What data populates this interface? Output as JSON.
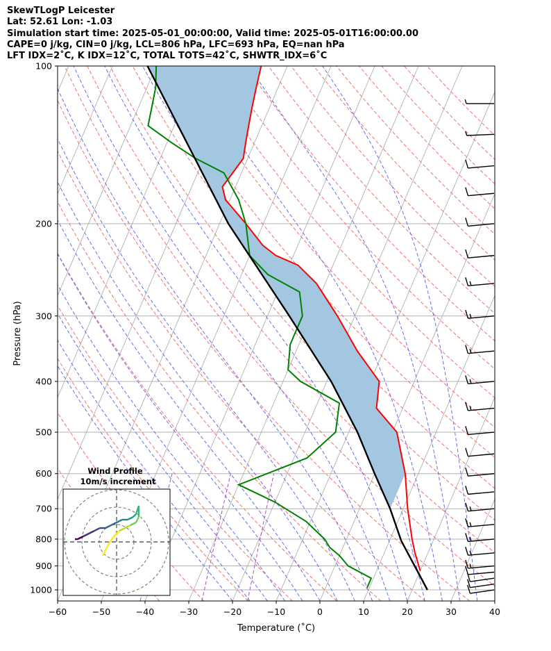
{
  "header": {
    "line1": "SkewTLogP Leicester",
    "line2": "Lat: 52.61   Lon: -1.03",
    "line3": "Simulation start time: 2025-05-01_00:00:00, Valid time: 2025-05-01T16:00:00.00",
    "line4": "CAPE=0 j/kg, CIN=0 j/kg, LCL=806 hPa, LFC=693 hPa, EQ=nan hPa",
    "line5": "LFT IDX=2˚C, K IDX=12˚C, TOTAL TOTS=42˚C, SHWTR_IDX=6˚C"
  },
  "chart_data": {
    "type": "line",
    "title": "SkewTLogP Leicester",
    "xlabel": "Temperature (˚C)",
    "ylabel": "Pressure (hPa)",
    "xlim": [
      -60,
      40
    ],
    "ylim": [
      1050,
      100
    ],
    "yscale": "log",
    "x_ticks": [
      "−60",
      "−50",
      "−40",
      "−30",
      "−20",
      "−10",
      "0",
      "10",
      "20",
      "30",
      "40"
    ],
    "y_ticks": [
      "1000",
      "900",
      "800",
      "700",
      "600",
      "500",
      "400",
      "300",
      "200",
      "100"
    ],
    "grid": true,
    "series": [
      {
        "name": "Temperature",
        "color": "#ff0000",
        "points": [
          [
            20,
            920
          ],
          [
            17,
            850
          ],
          [
            15,
            800
          ],
          [
            11,
            700
          ],
          [
            7,
            600
          ],
          [
            1,
            500
          ],
          [
            -6,
            450
          ],
          [
            -8,
            400
          ],
          [
            -16,
            350
          ],
          [
            -24,
            300
          ],
          [
            -32,
            260
          ],
          [
            -38,
            240
          ],
          [
            -44,
            230
          ],
          [
            -48,
            220
          ],
          [
            -54,
            200
          ],
          [
            -61,
            180
          ],
          [
            -63,
            170
          ],
          [
            -62,
            160
          ],
          [
            -61,
            150
          ],
          [
            -62,
            140
          ],
          [
            -63,
            130
          ],
          [
            -64,
            120
          ],
          [
            -65,
            110
          ],
          [
            -66,
            100
          ]
        ]
      },
      {
        "name": "Dew point",
        "color": "#008000",
        "points": [
          [
            9.5,
            990
          ],
          [
            9.5,
            970
          ],
          [
            9.5,
            950
          ],
          [
            3,
            900
          ],
          [
            0,
            860
          ],
          [
            -3,
            830
          ],
          [
            -5,
            800
          ],
          [
            -11,
            740
          ],
          [
            -20,
            680
          ],
          [
            -30,
            630
          ],
          [
            -17,
            560
          ],
          [
            -13,
            500
          ],
          [
            -15,
            440
          ],
          [
            -26,
            400
          ],
          [
            -30,
            380
          ],
          [
            -32,
            340
          ],
          [
            -32,
            300
          ],
          [
            -35,
            270
          ],
          [
            -44,
            250
          ],
          [
            -50,
            230
          ],
          [
            -54,
            200
          ],
          [
            -58,
            180
          ],
          [
            -64,
            160
          ],
          [
            -72,
            150
          ],
          [
            -79,
            140
          ],
          [
            -86,
            130
          ],
          [
            -88,
            110
          ],
          [
            -90,
            100
          ]
        ]
      },
      {
        "name": "Parcel profile",
        "color": "#000000",
        "points": [
          [
            23.5,
            1000
          ],
          [
            12.7,
            806
          ],
          [
            7,
            700
          ],
          [
            0,
            600
          ],
          [
            -8,
            500
          ],
          [
            -19,
            400
          ],
          [
            -35,
            300
          ],
          [
            -58,
            200
          ],
          [
            -92,
            100
          ]
        ]
      }
    ],
    "wind_barbs": [
      {
        "p": 1000,
        "speed_kt": 10,
        "dir_deg": 240
      },
      {
        "p": 975,
        "speed_kt": 10,
        "dir_deg": 240
      },
      {
        "p": 950,
        "speed_kt": 10,
        "dir_deg": 240
      },
      {
        "p": 925,
        "speed_kt": 10,
        "dir_deg": 250
      },
      {
        "p": 900,
        "speed_kt": 15,
        "dir_deg": 250
      },
      {
        "p": 850,
        "speed_kt": 15,
        "dir_deg": 250
      },
      {
        "p": 800,
        "speed_kt": 15,
        "dir_deg": 250
      },
      {
        "p": 750,
        "speed_kt": 15,
        "dir_deg": 250
      },
      {
        "p": 700,
        "speed_kt": 15,
        "dir_deg": 250
      },
      {
        "p": 650,
        "speed_kt": 10,
        "dir_deg": 250
      },
      {
        "p": 600,
        "speed_kt": 10,
        "dir_deg": 250
      },
      {
        "p": 550,
        "speed_kt": 10,
        "dir_deg": 250
      },
      {
        "p": 500,
        "speed_kt": 10,
        "dir_deg": 250
      },
      {
        "p": 450,
        "speed_kt": 15,
        "dir_deg": 250
      },
      {
        "p": 400,
        "speed_kt": 15,
        "dir_deg": 250
      },
      {
        "p": 350,
        "speed_kt": 15,
        "dir_deg": 250
      },
      {
        "p": 300,
        "speed_kt": 15,
        "dir_deg": 250
      },
      {
        "p": 260,
        "speed_kt": 15,
        "dir_deg": 250
      },
      {
        "p": 230,
        "speed_kt": 10,
        "dir_deg": 250
      },
      {
        "p": 200,
        "speed_kt": 10,
        "dir_deg": 250
      },
      {
        "p": 175,
        "speed_kt": 10,
        "dir_deg": 250
      },
      {
        "p": 155,
        "speed_kt": 10,
        "dir_deg": 250
      },
      {
        "p": 135,
        "speed_kt": 5,
        "dir_deg": 260
      },
      {
        "p": 118,
        "speed_kt": 5,
        "dir_deg": 270
      }
    ],
    "inset": {
      "title": "Wind Profile",
      "subtitle": "10m/s increment",
      "rings_ms": [
        10,
        20,
        30
      ],
      "hodograph": [
        [
          -5,
          -5
        ],
        [
          -3,
          -1
        ],
        [
          -1,
          2
        ],
        [
          1,
          4
        ],
        [
          3,
          5
        ],
        [
          5,
          6
        ],
        [
          7,
          7
        ],
        [
          8,
          9
        ],
        [
          8,
          13
        ],
        [
          7,
          10
        ],
        [
          6,
          9
        ],
        [
          4,
          8
        ],
        [
          2,
          8
        ],
        [
          0,
          7
        ],
        [
          -2,
          6
        ],
        [
          -4,
          5
        ],
        [
          -6,
          5
        ],
        [
          -8,
          4
        ],
        [
          -10,
          3
        ],
        [
          -12,
          2
        ],
        [
          -14,
          1
        ],
        [
          -15,
          1
        ]
      ]
    }
  },
  "colors": {
    "temperature": "#ff0000",
    "dewpoint": "#008000",
    "parcel": "#000000",
    "cape_fill": "#a3c7e0",
    "isotherm": "#b0b0b0",
    "dry_adiabat": "#f07070",
    "moist_adiabat": "#6a6af0",
    "mixing_ratio": "#a050c0"
  }
}
